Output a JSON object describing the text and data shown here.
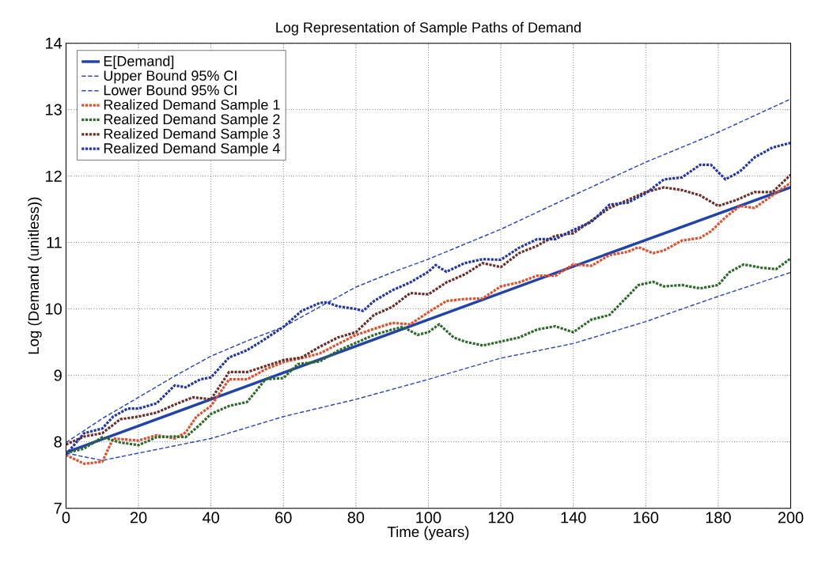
{
  "chart_data": {
    "type": "line",
    "title": "Log Representation of Sample Paths of Demand",
    "xlabel": "Time (years)",
    "ylabel": "Log (Demand (unitless))",
    "xlim": [
      0,
      200
    ],
    "ylim": [
      7,
      14
    ],
    "xticks": [
      0,
      20,
      40,
      60,
      80,
      100,
      120,
      140,
      160,
      180,
      200
    ],
    "yticks": [
      7,
      8,
      9,
      10,
      11,
      12,
      13,
      14
    ],
    "grid": true,
    "legend": "top left",
    "marker": "none",
    "series": [
      {
        "name": "E[Demand]",
        "color": "#2244aa",
        "line_style": "solid",
        "x": [
          0,
          50,
          100,
          150,
          200
        ],
        "values": [
          7.84,
          8.84,
          9.84,
          10.84,
          11.83
        ]
      },
      {
        "name": "Upper Bound 95% CI",
        "color": "#2a4cb8",
        "line_style": "dashed",
        "x": [
          0,
          10,
          20,
          30,
          40,
          50,
          60,
          70,
          80,
          90,
          100,
          120,
          140,
          160,
          180,
          200
        ],
        "values": [
          7.99,
          8.35,
          8.67,
          8.99,
          9.29,
          9.52,
          9.73,
          10.03,
          10.33,
          10.55,
          10.75,
          11.2,
          11.71,
          12.21,
          12.66,
          13.16
        ]
      },
      {
        "name": "Lower Bound 95% CI",
        "color": "#2a4cb8",
        "line_style": "dashed",
        "x": [
          0,
          10,
          20,
          40,
          60,
          80,
          100,
          120,
          140,
          160,
          180,
          200
        ],
        "values": [
          7.83,
          7.72,
          7.83,
          8.05,
          8.38,
          8.64,
          8.94,
          9.26,
          9.48,
          9.81,
          10.19,
          10.55
        ]
      },
      {
        "name": "Realized Demand Sample 1",
        "color": "#e0502e",
        "line_style": "dotted",
        "x": [
          0,
          5,
          10,
          13,
          20,
          25,
          30,
          33,
          36,
          40,
          45,
          50,
          55,
          60,
          65,
          70,
          75,
          80,
          90,
          95,
          100,
          105,
          110,
          115,
          120,
          125,
          130,
          135,
          140,
          145,
          150,
          155,
          158,
          162,
          165,
          170,
          175,
          178,
          182,
          186,
          190,
          195,
          200
        ],
        "values": [
          7.8,
          7.67,
          7.7,
          8.05,
          8.02,
          8.1,
          8.05,
          8.14,
          8.38,
          8.54,
          8.94,
          8.94,
          9.09,
          9.2,
          9.26,
          9.33,
          9.47,
          9.61,
          9.79,
          9.77,
          9.95,
          10.12,
          10.15,
          10.16,
          10.34,
          10.4,
          10.5,
          10.5,
          10.67,
          10.65,
          10.81,
          10.86,
          10.93,
          10.84,
          10.88,
          11.03,
          11.07,
          11.17,
          11.38,
          11.55,
          11.52,
          11.71,
          11.9
        ]
      },
      {
        "name": "Realized Demand Sample 2",
        "color": "#2e6b2a",
        "line_style": "dotted",
        "x": [
          0,
          5,
          10,
          15,
          20,
          25,
          30,
          33,
          37,
          40,
          45,
          50,
          55,
          60,
          64,
          70,
          75,
          80,
          85,
          90,
          93,
          97,
          100,
          103,
          107,
          110,
          115,
          120,
          125,
          130,
          135,
          140,
          145,
          150,
          155,
          158,
          162,
          165,
          170,
          175,
          180,
          183,
          187,
          192,
          196,
          200
        ],
        "values": [
          7.83,
          7.9,
          8.07,
          7.99,
          7.95,
          8.07,
          8.08,
          8.07,
          8.26,
          8.42,
          8.54,
          8.6,
          8.94,
          8.96,
          9.17,
          9.21,
          9.37,
          9.49,
          9.61,
          9.69,
          9.73,
          9.61,
          9.65,
          9.77,
          9.57,
          9.51,
          9.45,
          9.51,
          9.57,
          9.69,
          9.74,
          9.65,
          9.84,
          9.91,
          10.19,
          10.36,
          10.41,
          10.34,
          10.36,
          10.31,
          10.36,
          10.55,
          10.67,
          10.62,
          10.6,
          10.76
        ]
      },
      {
        "name": "Realized Demand Sample 3",
        "color": "#6b2f2a",
        "line_style": "dotted",
        "x": [
          0,
          5,
          10,
          15,
          20,
          25,
          30,
          35,
          40,
          45,
          50,
          55,
          60,
          65,
          70,
          75,
          80,
          85,
          90,
          95,
          100,
          105,
          110,
          115,
          120,
          125,
          130,
          135,
          140,
          145,
          150,
          155,
          160,
          165,
          170,
          175,
          180,
          185,
          190,
          195,
          200
        ],
        "values": [
          7.96,
          8.08,
          8.13,
          8.34,
          8.38,
          8.44,
          8.56,
          8.67,
          8.64,
          9.05,
          9.05,
          9.14,
          9.23,
          9.27,
          9.43,
          9.57,
          9.65,
          9.91,
          10.03,
          10.24,
          10.22,
          10.4,
          10.52,
          10.69,
          10.63,
          10.84,
          10.95,
          11.1,
          11.14,
          11.33,
          11.52,
          11.64,
          11.76,
          11.83,
          11.79,
          11.71,
          11.55,
          11.64,
          11.76,
          11.76,
          12.02
        ]
      },
      {
        "name": "Realized Demand Sample 4",
        "color": "#2236a8",
        "line_style": "dotted",
        "x": [
          0,
          5,
          10,
          13,
          17,
          20,
          25,
          30,
          33,
          37,
          40,
          45,
          50,
          55,
          60,
          65,
          70,
          72,
          75,
          80,
          82,
          85,
          90,
          95,
          100,
          102,
          105,
          110,
          115,
          120,
          125,
          130,
          135,
          140,
          145,
          150,
          155,
          160,
          165,
          170,
          175,
          178,
          182,
          186,
          190,
          195,
          200
        ],
        "values": [
          7.81,
          8.13,
          8.2,
          8.38,
          8.5,
          8.5,
          8.58,
          8.85,
          8.82,
          8.94,
          8.97,
          9.27,
          9.38,
          9.55,
          9.73,
          9.97,
          10.09,
          10.1,
          10.04,
          10.0,
          9.97,
          10.12,
          10.28,
          10.4,
          10.56,
          10.66,
          10.56,
          10.69,
          10.75,
          10.74,
          10.92,
          11.05,
          11.05,
          11.19,
          11.31,
          11.57,
          11.6,
          11.74,
          11.95,
          11.98,
          12.17,
          12.17,
          11.95,
          12.07,
          12.28,
          12.43,
          12.5
        ]
      }
    ]
  }
}
